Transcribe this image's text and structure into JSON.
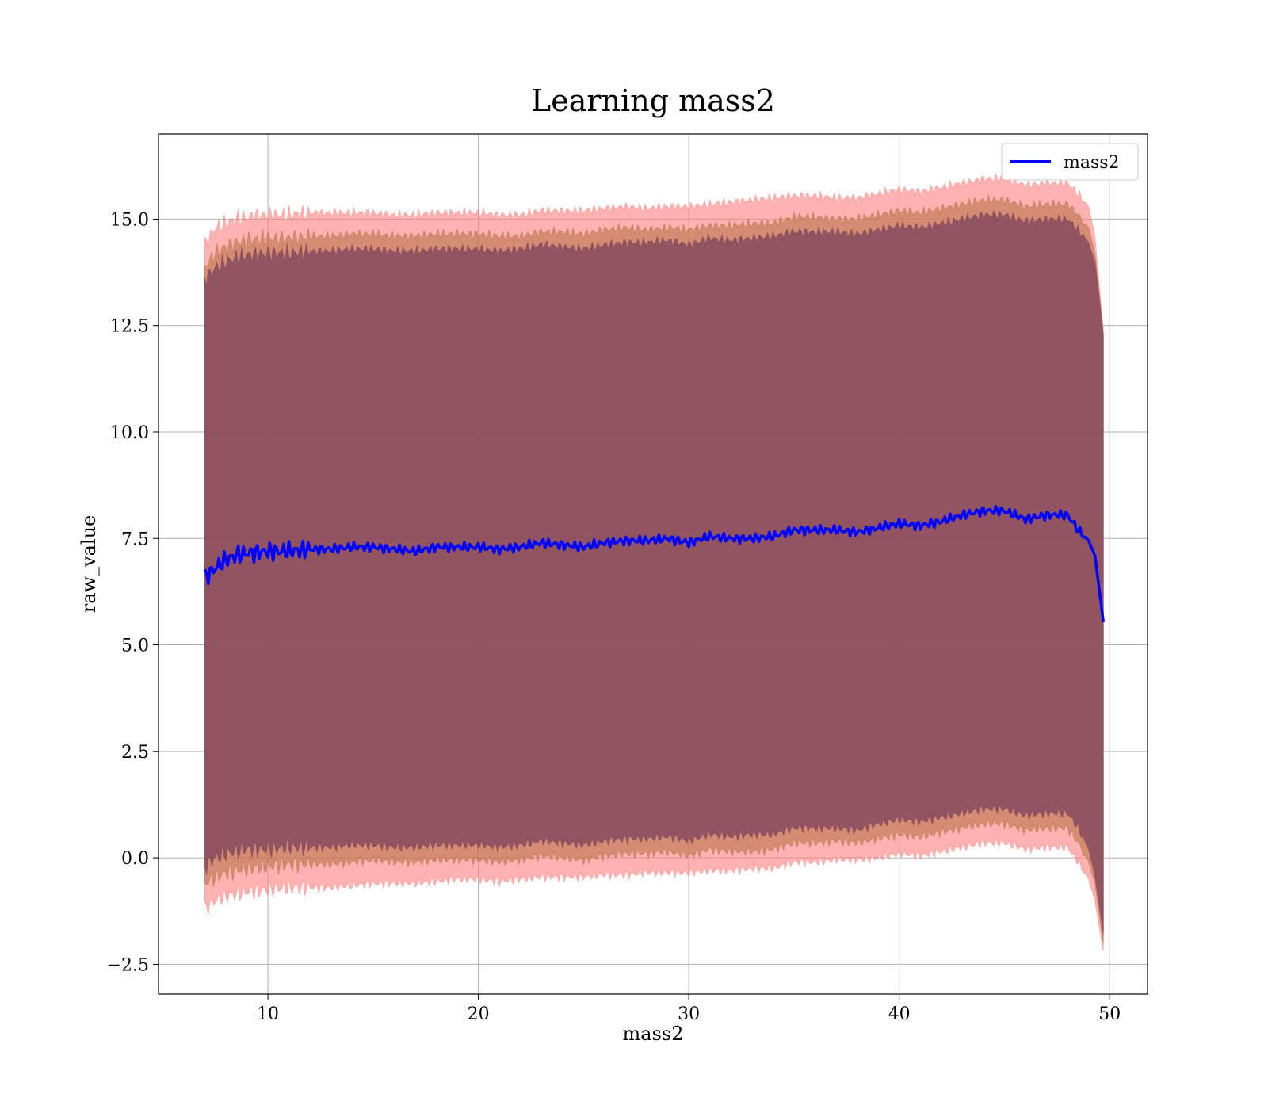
{
  "chart_data": {
    "type": "line",
    "title": "Learning mass2",
    "xlabel": "mass2",
    "ylabel": "raw_value",
    "xlim": [
      4.8,
      51.8
    ],
    "ylim": [
      -3.2,
      17.0
    ],
    "xticks": [
      10,
      20,
      30,
      40,
      50
    ],
    "xtick_labels": [
      "10",
      "20",
      "30",
      "40",
      "50"
    ],
    "yticks": [
      -2.5,
      0.0,
      2.5,
      5.0,
      7.5,
      10.0,
      12.5,
      15.0
    ],
    "ytick_labels": [
      "−2.5",
      "0.0",
      "2.5",
      "5.0",
      "7.5",
      "10.0",
      "12.5",
      "15.0"
    ],
    "grid": true,
    "legend": {
      "position": "top-right",
      "entries": [
        "mass2"
      ]
    },
    "series": [
      {
        "name": "mass2",
        "color": "#0000ff",
        "x": [
          7.0,
          7.5,
          8.0,
          8.5,
          9.0,
          10,
          11,
          12,
          13,
          14,
          15,
          16,
          17,
          18,
          19,
          20,
          21,
          22,
          23,
          24,
          25,
          26,
          27,
          28,
          29,
          30,
          31,
          32,
          33,
          34,
          35,
          36,
          37,
          38,
          39,
          40,
          41,
          42,
          43,
          44,
          45,
          46,
          47,
          48,
          48.5,
          49,
          49.3,
          49.7
        ],
        "y": [
          6.6,
          6.8,
          7.0,
          7.1,
          7.15,
          7.2,
          7.2,
          7.25,
          7.25,
          7.3,
          7.3,
          7.25,
          7.2,
          7.3,
          7.3,
          7.3,
          7.25,
          7.3,
          7.4,
          7.35,
          7.3,
          7.4,
          7.45,
          7.45,
          7.5,
          7.4,
          7.55,
          7.5,
          7.5,
          7.55,
          7.7,
          7.7,
          7.7,
          7.65,
          7.75,
          7.85,
          7.8,
          7.9,
          8.05,
          8.15,
          8.15,
          7.95,
          8.05,
          8.05,
          7.7,
          7.45,
          7.1,
          5.55
        ]
      }
    ],
    "bands": [
      {
        "color": "#ff7f7f",
        "opacity": 0.6,
        "upper": [
          14.4,
          14.8,
          14.9,
          15.0,
          15.05,
          15.1,
          15.1,
          15.15,
          15.15,
          15.15,
          15.15,
          15.1,
          15.1,
          15.15,
          15.15,
          15.15,
          15.1,
          15.1,
          15.2,
          15.2,
          15.2,
          15.25,
          15.3,
          15.25,
          15.3,
          15.3,
          15.35,
          15.4,
          15.45,
          15.5,
          15.55,
          15.55,
          15.5,
          15.5,
          15.6,
          15.7,
          15.65,
          15.75,
          15.85,
          15.95,
          15.95,
          15.8,
          15.85,
          15.85,
          15.6,
          15.3,
          14.6,
          12.4
        ],
        "lower": [
          -1.2,
          -1.0,
          -0.9,
          -0.85,
          -0.8,
          -0.75,
          -0.7,
          -0.7,
          -0.7,
          -0.65,
          -0.6,
          -0.6,
          -0.6,
          -0.55,
          -0.5,
          -0.5,
          -0.55,
          -0.5,
          -0.45,
          -0.45,
          -0.45,
          -0.4,
          -0.4,
          -0.35,
          -0.35,
          -0.35,
          -0.3,
          -0.3,
          -0.25,
          -0.25,
          -0.1,
          -0.1,
          -0.05,
          -0.05,
          0.0,
          0.1,
          0.05,
          0.15,
          0.25,
          0.35,
          0.35,
          0.2,
          0.25,
          0.25,
          -0.1,
          -0.5,
          -1.0,
          -2.2
        ]
      },
      {
        "color": "#b07040",
        "opacity": 0.55,
        "upper": [
          13.9,
          14.2,
          14.35,
          14.45,
          14.5,
          14.55,
          14.55,
          14.6,
          14.6,
          14.65,
          14.65,
          14.6,
          14.6,
          14.65,
          14.65,
          14.65,
          14.6,
          14.6,
          14.7,
          14.7,
          14.65,
          14.75,
          14.8,
          14.75,
          14.8,
          14.75,
          14.85,
          14.85,
          14.9,
          14.9,
          15.05,
          15.05,
          15.0,
          15.0,
          15.1,
          15.2,
          15.15,
          15.25,
          15.35,
          15.45,
          15.45,
          15.3,
          15.35,
          15.35,
          15.1,
          14.8,
          14.2,
          12.3
        ],
        "lower": [
          -0.6,
          -0.45,
          -0.35,
          -0.3,
          -0.25,
          -0.2,
          -0.15,
          -0.15,
          -0.15,
          -0.1,
          -0.05,
          -0.1,
          -0.1,
          -0.05,
          -0.05,
          -0.05,
          -0.1,
          -0.05,
          0.05,
          0.0,
          -0.05,
          0.05,
          0.1,
          0.1,
          0.15,
          0.05,
          0.2,
          0.15,
          0.15,
          0.2,
          0.35,
          0.35,
          0.4,
          0.35,
          0.45,
          0.55,
          0.5,
          0.6,
          0.7,
          0.8,
          0.8,
          0.65,
          0.7,
          0.7,
          0.35,
          -0.1,
          -0.6,
          -2.0
        ]
      },
      {
        "color": "#7a3f5a",
        "opacity": 0.72,
        "upper": [
          13.6,
          13.85,
          14.0,
          14.1,
          14.15,
          14.2,
          14.2,
          14.25,
          14.25,
          14.3,
          14.3,
          14.25,
          14.25,
          14.3,
          14.3,
          14.3,
          14.25,
          14.3,
          14.4,
          14.35,
          14.3,
          14.4,
          14.45,
          14.45,
          14.5,
          14.4,
          14.55,
          14.5,
          14.55,
          14.6,
          14.7,
          14.7,
          14.7,
          14.65,
          14.75,
          14.85,
          14.8,
          14.9,
          15.0,
          15.1,
          15.1,
          14.95,
          15.0,
          15.0,
          14.75,
          14.45,
          14.0,
          12.3
        ],
        "lower": [
          -0.2,
          0.0,
          0.1,
          0.15,
          0.2,
          0.2,
          0.25,
          0.25,
          0.25,
          0.3,
          0.3,
          0.25,
          0.25,
          0.3,
          0.3,
          0.3,
          0.25,
          0.3,
          0.4,
          0.35,
          0.3,
          0.4,
          0.45,
          0.45,
          0.5,
          0.4,
          0.55,
          0.5,
          0.55,
          0.55,
          0.7,
          0.7,
          0.7,
          0.65,
          0.8,
          0.9,
          0.85,
          0.95,
          1.05,
          1.15,
          1.15,
          1.0,
          1.05,
          1.05,
          0.7,
          0.2,
          -0.4,
          -1.8
        ]
      }
    ]
  }
}
